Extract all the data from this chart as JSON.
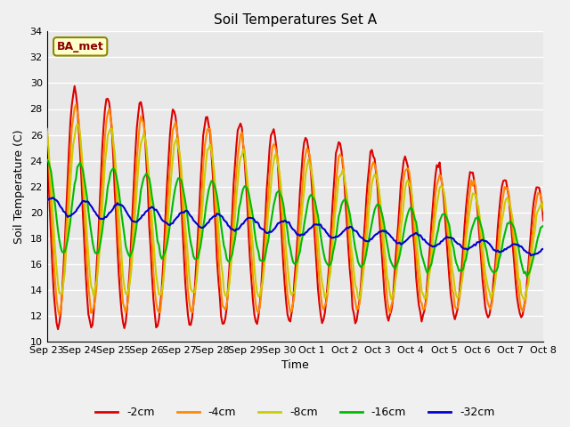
{
  "title": "Soil Temperatures Set A",
  "xlabel": "Time",
  "ylabel": "Soil Temperature (C)",
  "ylim": [
    10,
    34
  ],
  "yticks": [
    10,
    12,
    14,
    16,
    18,
    20,
    22,
    24,
    26,
    28,
    30,
    32,
    34
  ],
  "xtick_positions": [
    0,
    1,
    2,
    3,
    4,
    5,
    6,
    7,
    8,
    9,
    10,
    11,
    12,
    13,
    14,
    15
  ],
  "xtick_labels": [
    "Sep 23",
    "Sep 24",
    "Sep 25",
    "Sep 26",
    "Sep 27",
    "Sep 28",
    "Sep 29",
    "Sep 30",
    "Oct 1",
    "Oct 2",
    "Oct 3",
    "Oct 4",
    "Oct 5",
    "Oct 6",
    "Oct 7",
    "Oct 8"
  ],
  "colors": {
    "-2cm": "#dd0000",
    "-4cm": "#ff8800",
    "-8cm": "#cccc00",
    "-16cm": "#00bb00",
    "-32cm": "#0000cc"
  },
  "legend_label": "BA_met",
  "bg_color": "#e8e8e8",
  "linewidth": 1.5,
  "n_days": 15
}
